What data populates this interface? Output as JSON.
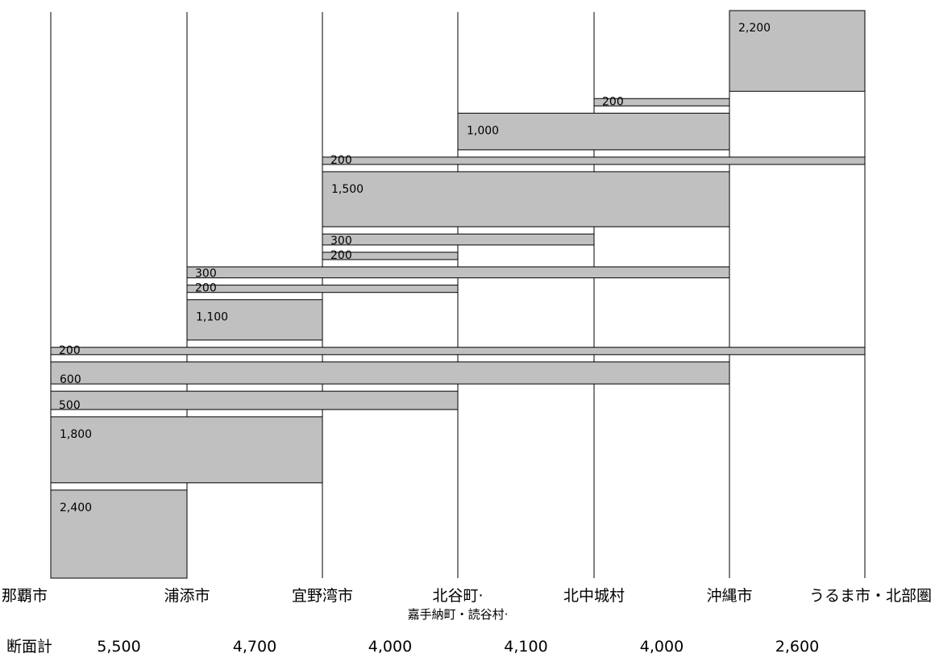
{
  "chart_data": {
    "type": "bar",
    "categories": [
      "那覇市",
      "浦添市",
      "宜野湾市",
      "北谷町・嘉手納町・読谷村",
      "北中城村",
      "沖縄市",
      "うるま市・北部圏"
    ],
    "category_labels": [
      {
        "lines": [
          "那覇市"
        ]
      },
      {
        "lines": [
          "浦添市"
        ]
      },
      {
        "lines": [
          "宜野湾市"
        ]
      },
      {
        "lines": [
          "北谷町·",
          "嘉手納町・読谷村·"
        ]
      },
      {
        "lines": [
          "北中城村"
        ]
      },
      {
        "lines": [
          "沖縄市"
        ]
      },
      {
        "lines": [
          "うるま市・北部圏"
        ]
      }
    ],
    "flows": [
      {
        "from": 0,
        "to": 1,
        "value": 2400,
        "label": "2,400"
      },
      {
        "from": 0,
        "to": 2,
        "value": 1800,
        "label": "1,800"
      },
      {
        "from": 0,
        "to": 3,
        "value": 500,
        "label": "500"
      },
      {
        "from": 0,
        "to": 5,
        "value": 600,
        "label": "600"
      },
      {
        "from": 0,
        "to": 6,
        "value": 200,
        "label": "200"
      },
      {
        "from": 1,
        "to": 2,
        "value": 1100,
        "label": "1,100"
      },
      {
        "from": 1,
        "to": 3,
        "value": 200,
        "label": "200"
      },
      {
        "from": 1,
        "to": 5,
        "value": 300,
        "label": "300"
      },
      {
        "from": 2,
        "to": 3,
        "value": 200,
        "label": "200"
      },
      {
        "from": 2,
        "to": 4,
        "value": 300,
        "label": "300"
      },
      {
        "from": 2,
        "to": 5,
        "value": 1500,
        "label": "1,500"
      },
      {
        "from": 2,
        "to": 6,
        "value": 200,
        "label": "200"
      },
      {
        "from": 3,
        "to": 5,
        "value": 1000,
        "label": "1,000"
      },
      {
        "from": 4,
        "to": 5,
        "value": 200,
        "label": "200"
      },
      {
        "from": 5,
        "to": 6,
        "value": 2200,
        "label": "2,200"
      }
    ],
    "section_totals_label": "断面計",
    "section_totals": [
      "5,500",
      "4,700",
      "4,000",
      "4,100",
      "4,000",
      "2,600"
    ],
    "bar_color": "#c0c0c0",
    "bar_border_color": "#000000",
    "line_color": "#000000"
  }
}
